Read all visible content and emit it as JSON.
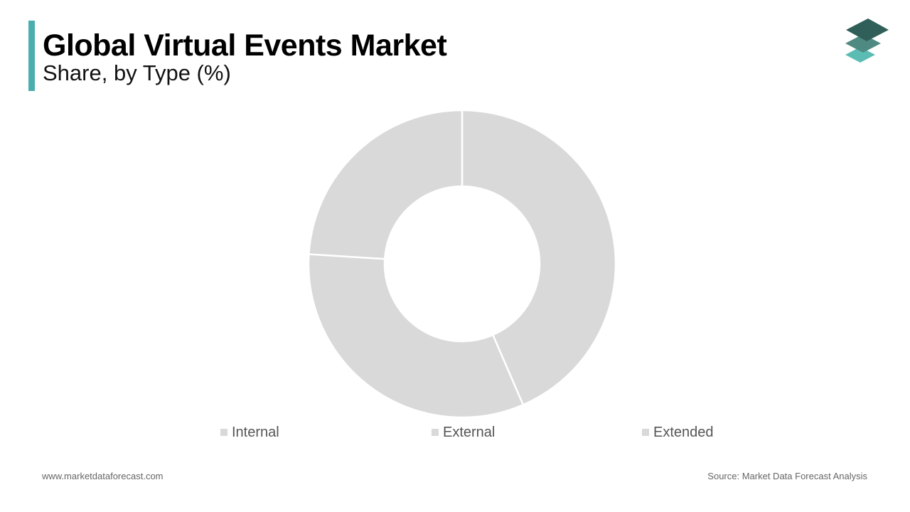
{
  "header": {
    "title": "Global Virtual Events Market",
    "subtitle": "Share, by Type (%)",
    "accent_color": "#4aaeae"
  },
  "logo": {
    "icon": "stacked-layers-logo",
    "colors": [
      "#2f5f58",
      "#4f8a82",
      "#5bbcb4"
    ]
  },
  "chart_data": {
    "type": "pie",
    "style": "donut",
    "categories": [
      "Internal",
      "External",
      "Extended"
    ],
    "values": [
      43.5,
      32.5,
      24
    ],
    "colors": [
      "#d9d9d9",
      "#d9d9d9",
      "#d9d9d9"
    ],
    "slice_border_color": "#ffffff",
    "legend_position": "bottom"
  },
  "footer": {
    "website": "www.marketdataforecast.com",
    "source": "Source: Market Data Forecast Analysis"
  }
}
